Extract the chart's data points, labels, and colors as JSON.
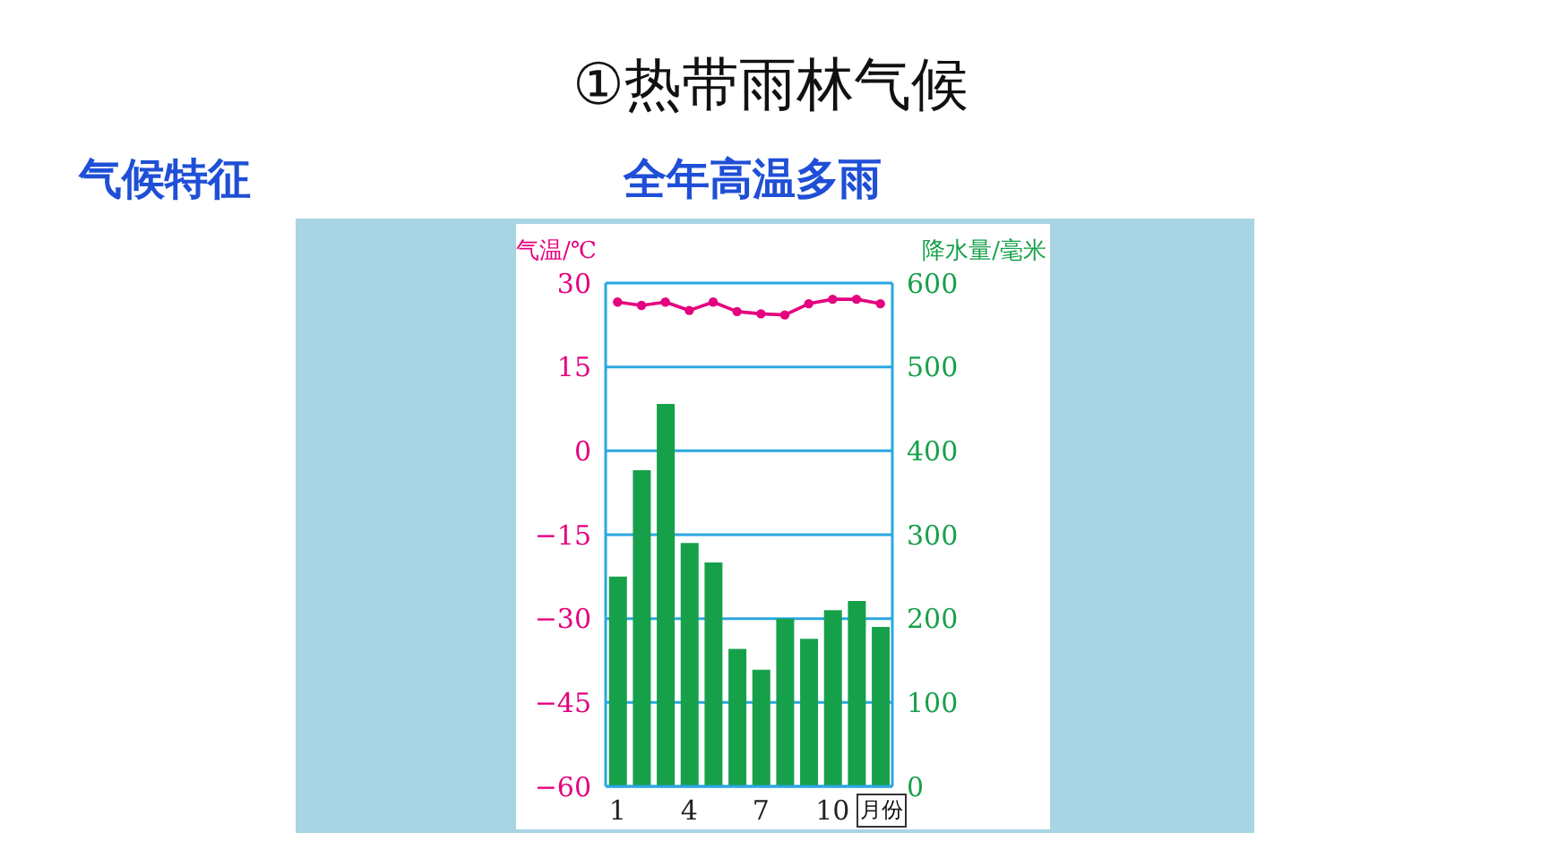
{
  "chart_data": {
    "type": "bar",
    "title": "①热带雨林气候",
    "annotations": [
      "气候特征",
      "全年高温多雨"
    ],
    "categories": [
      "1",
      null,
      null,
      "4",
      null,
      null,
      "7",
      null,
      null,
      "10",
      null,
      null
    ],
    "xlabel": "月份",
    "ylabel": "气温/℃",
    "y2label": "降水量/毫米",
    "series": [
      {
        "type": "line",
        "color": "#e4007f",
        "values": [
          26.6,
          26,
          26.6,
          25.1,
          26.6,
          24.9,
          24.5,
          24.3,
          26.3,
          27.1,
          27.1,
          26.3
        ]
      },
      {
        "axis": "y2",
        "color": "#17a04a",
        "values": [
          250,
          377,
          456,
          290,
          267,
          164,
          139,
          200,
          176,
          210,
          221,
          190
        ]
      }
    ],
    "ylim": [
      -60,
      30
    ],
    "yticks": [
      30,
      15,
      0,
      -15,
      -30,
      -45,
      -60
    ],
    "y2lim": [
      0,
      600
    ],
    "y2ticks": [
      0,
      100,
      200,
      300,
      400,
      500,
      600
    ],
    "grid": "y",
    "marker": "circle"
  }
}
